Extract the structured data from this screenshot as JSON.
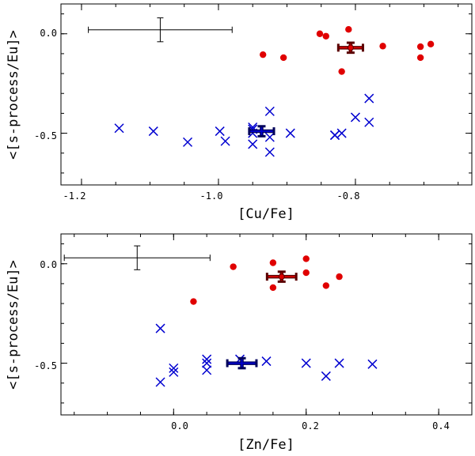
{
  "chart_data": [
    {
      "type": "scatter",
      "xlabel": "[Cu/Fe]",
      "ylabel": "<[s-process/Eu]>",
      "xlim": [
        -1.23,
        -0.63
      ],
      "ylim": [
        -0.76,
        0.15
      ],
      "xticks": [
        -1.2,
        -1.0,
        -0.8
      ],
      "xtick_labels": [
        "-1.2",
        "-1.0",
        "-0.8"
      ],
      "yticks": [
        0.0,
        -0.5
      ],
      "ytick_labels": [
        "0.0",
        "-0.5"
      ],
      "error_bar": {
        "x": -1.085,
        "y": 0.02,
        "xerr": 0.105,
        "yerr": 0.06
      },
      "series": [
        {
          "marker": "filled-circle",
          "color": "#e00000",
          "points": [
            [
              -0.935,
              -0.105
            ],
            [
              -0.905,
              -0.12
            ],
            [
              -0.852,
              0.0
            ],
            [
              -0.843,
              -0.012
            ],
            [
              -0.82,
              -0.19
            ],
            [
              -0.81,
              0.022
            ],
            [
              -0.76,
              -0.062
            ],
            [
              -0.705,
              -0.065
            ],
            [
              -0.705,
              -0.12
            ],
            [
              -0.69,
              -0.052
            ]
          ],
          "mean": {
            "x": -0.807,
            "y": -0.07,
            "xerr": 0.018,
            "yerr": 0.025
          }
        },
        {
          "marker": "x",
          "color": "#0000d0",
          "points": [
            [
              -1.145,
              -0.475
            ],
            [
              -1.095,
              -0.49
            ],
            [
              -1.045,
              -0.545
            ],
            [
              -0.998,
              -0.49
            ],
            [
              -0.99,
              -0.54
            ],
            [
              -0.95,
              -0.47
            ],
            [
              -0.95,
              -0.48
            ],
            [
              -0.95,
              -0.5
            ],
            [
              -0.95,
              -0.555
            ],
            [
              -0.925,
              -0.39
            ],
            [
              -0.925,
              -0.52
            ],
            [
              -0.925,
              -0.595
            ],
            [
              -0.895,
              -0.5
            ],
            [
              -0.83,
              -0.51
            ],
            [
              -0.83,
              -0.51
            ],
            [
              -0.82,
              -0.5
            ],
            [
              -0.8,
              -0.42
            ],
            [
              -0.78,
              -0.325
            ],
            [
              -0.78,
              -0.445
            ]
          ],
          "mean": {
            "x": -0.937,
            "y": -0.49,
            "xerr": 0.018,
            "yerr": 0.025
          }
        }
      ]
    },
    {
      "type": "scatter",
      "xlabel": "[Zn/Fe]",
      "ylabel": "<[s-process/Eu]>",
      "xlim": [
        -0.17,
        0.45
      ],
      "ylim": [
        -0.76,
        0.15
      ],
      "xticks": [
        0.0,
        0.2,
        0.4
      ],
      "xtick_labels": [
        "0.0",
        "0.2",
        "0.4"
      ],
      "yticks": [
        0.0,
        -0.5
      ],
      "ytick_labels": [
        "0.0",
        "-0.5"
      ],
      "error_bar": {
        "x": -0.055,
        "y": 0.03,
        "xerr": 0.11,
        "yerr": 0.06
      },
      "series": [
        {
          "marker": "filled-circle",
          "color": "#e00000",
          "points": [
            [
              0.03,
              -0.19
            ],
            [
              0.09,
              -0.015
            ],
            [
              0.15,
              0.005
            ],
            [
              0.15,
              -0.12
            ],
            [
              0.2,
              0.025
            ],
            [
              0.2,
              -0.045
            ],
            [
              0.23,
              -0.11
            ],
            [
              0.25,
              -0.065
            ]
          ],
          "mean": {
            "x": 0.163,
            "y": -0.065,
            "xerr": 0.022,
            "yerr": 0.025
          }
        },
        {
          "marker": "x",
          "color": "#0000d0",
          "points": [
            [
              -0.02,
              -0.325
            ],
            [
              -0.02,
              -0.595
            ],
            [
              0.0,
              -0.525
            ],
            [
              0.0,
              -0.545
            ],
            [
              0.05,
              -0.48
            ],
            [
              0.05,
              -0.5
            ],
            [
              0.05,
              -0.535
            ],
            [
              0.1,
              -0.48
            ],
            [
              0.14,
              -0.49
            ],
            [
              0.2,
              -0.5
            ],
            [
              0.23,
              -0.565
            ],
            [
              0.25,
              -0.5
            ],
            [
              0.3,
              -0.505
            ]
          ],
          "mean": {
            "x": 0.103,
            "y": -0.5,
            "xerr": 0.022,
            "yerr": 0.025
          }
        }
      ]
    }
  ]
}
